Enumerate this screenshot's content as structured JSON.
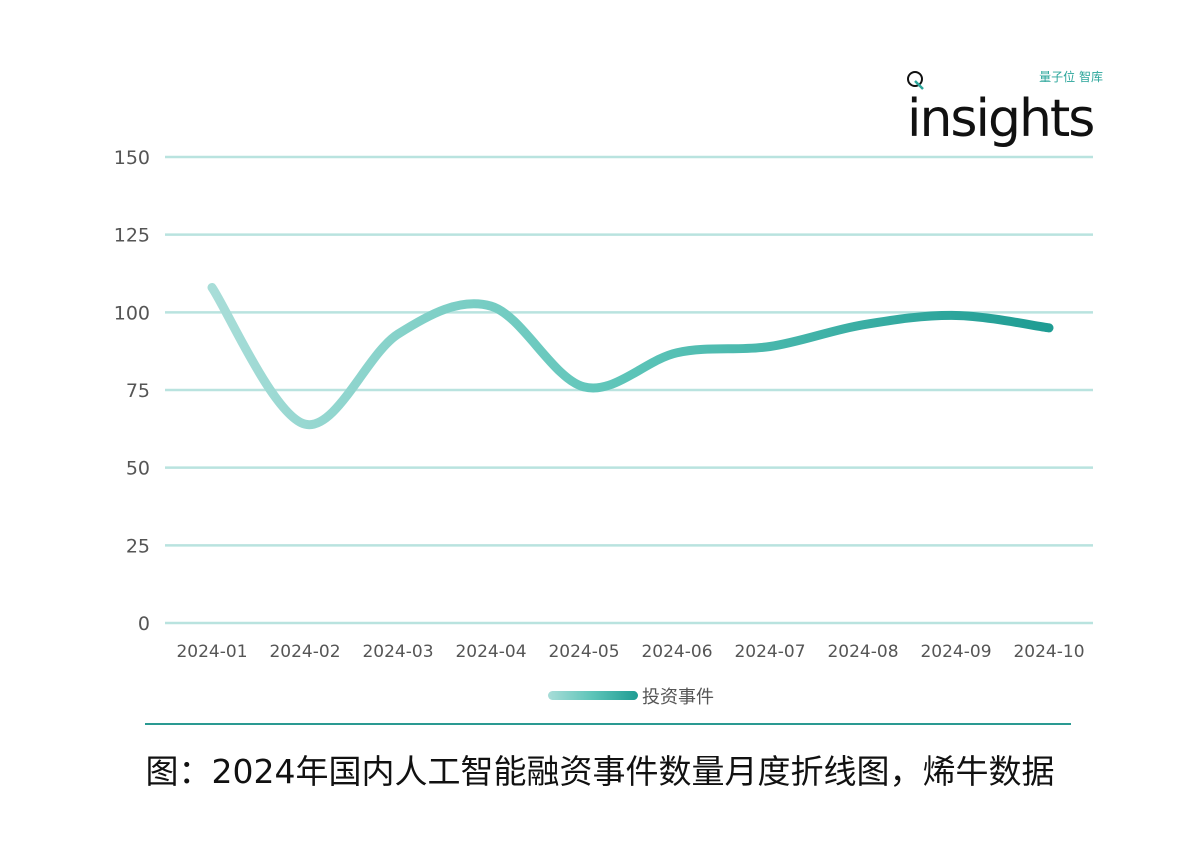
{
  "logo": {
    "cn": "量子位 智库",
    "en": "insights"
  },
  "caption": "图：2024年国内人工智能融资事件数量月度折线图，烯牛数据",
  "colors": {
    "line_start": "#a8ddd8",
    "line_mid": "#5cc4b8",
    "line_end": "#1f9c93",
    "grid": "#b9e3df",
    "rule": "#2a9a92"
  },
  "chart_data": {
    "type": "line",
    "categories": [
      "2024-01",
      "2024-02",
      "2024-03",
      "2024-04",
      "2024-05",
      "2024-06",
      "2024-07",
      "2024-08",
      "2024-09",
      "2024-10"
    ],
    "series": [
      {
        "name": "投资事件",
        "values": [
          108,
          64,
          93,
          102,
          76,
          87,
          89,
          96,
          99,
          95
        ]
      }
    ],
    "yticks": [
      "0",
      "25",
      "50",
      "75",
      "100",
      "125",
      "150"
    ],
    "ylim": [
      0,
      150
    ],
    "grid": true,
    "smooth": true,
    "legend": "bottom"
  }
}
